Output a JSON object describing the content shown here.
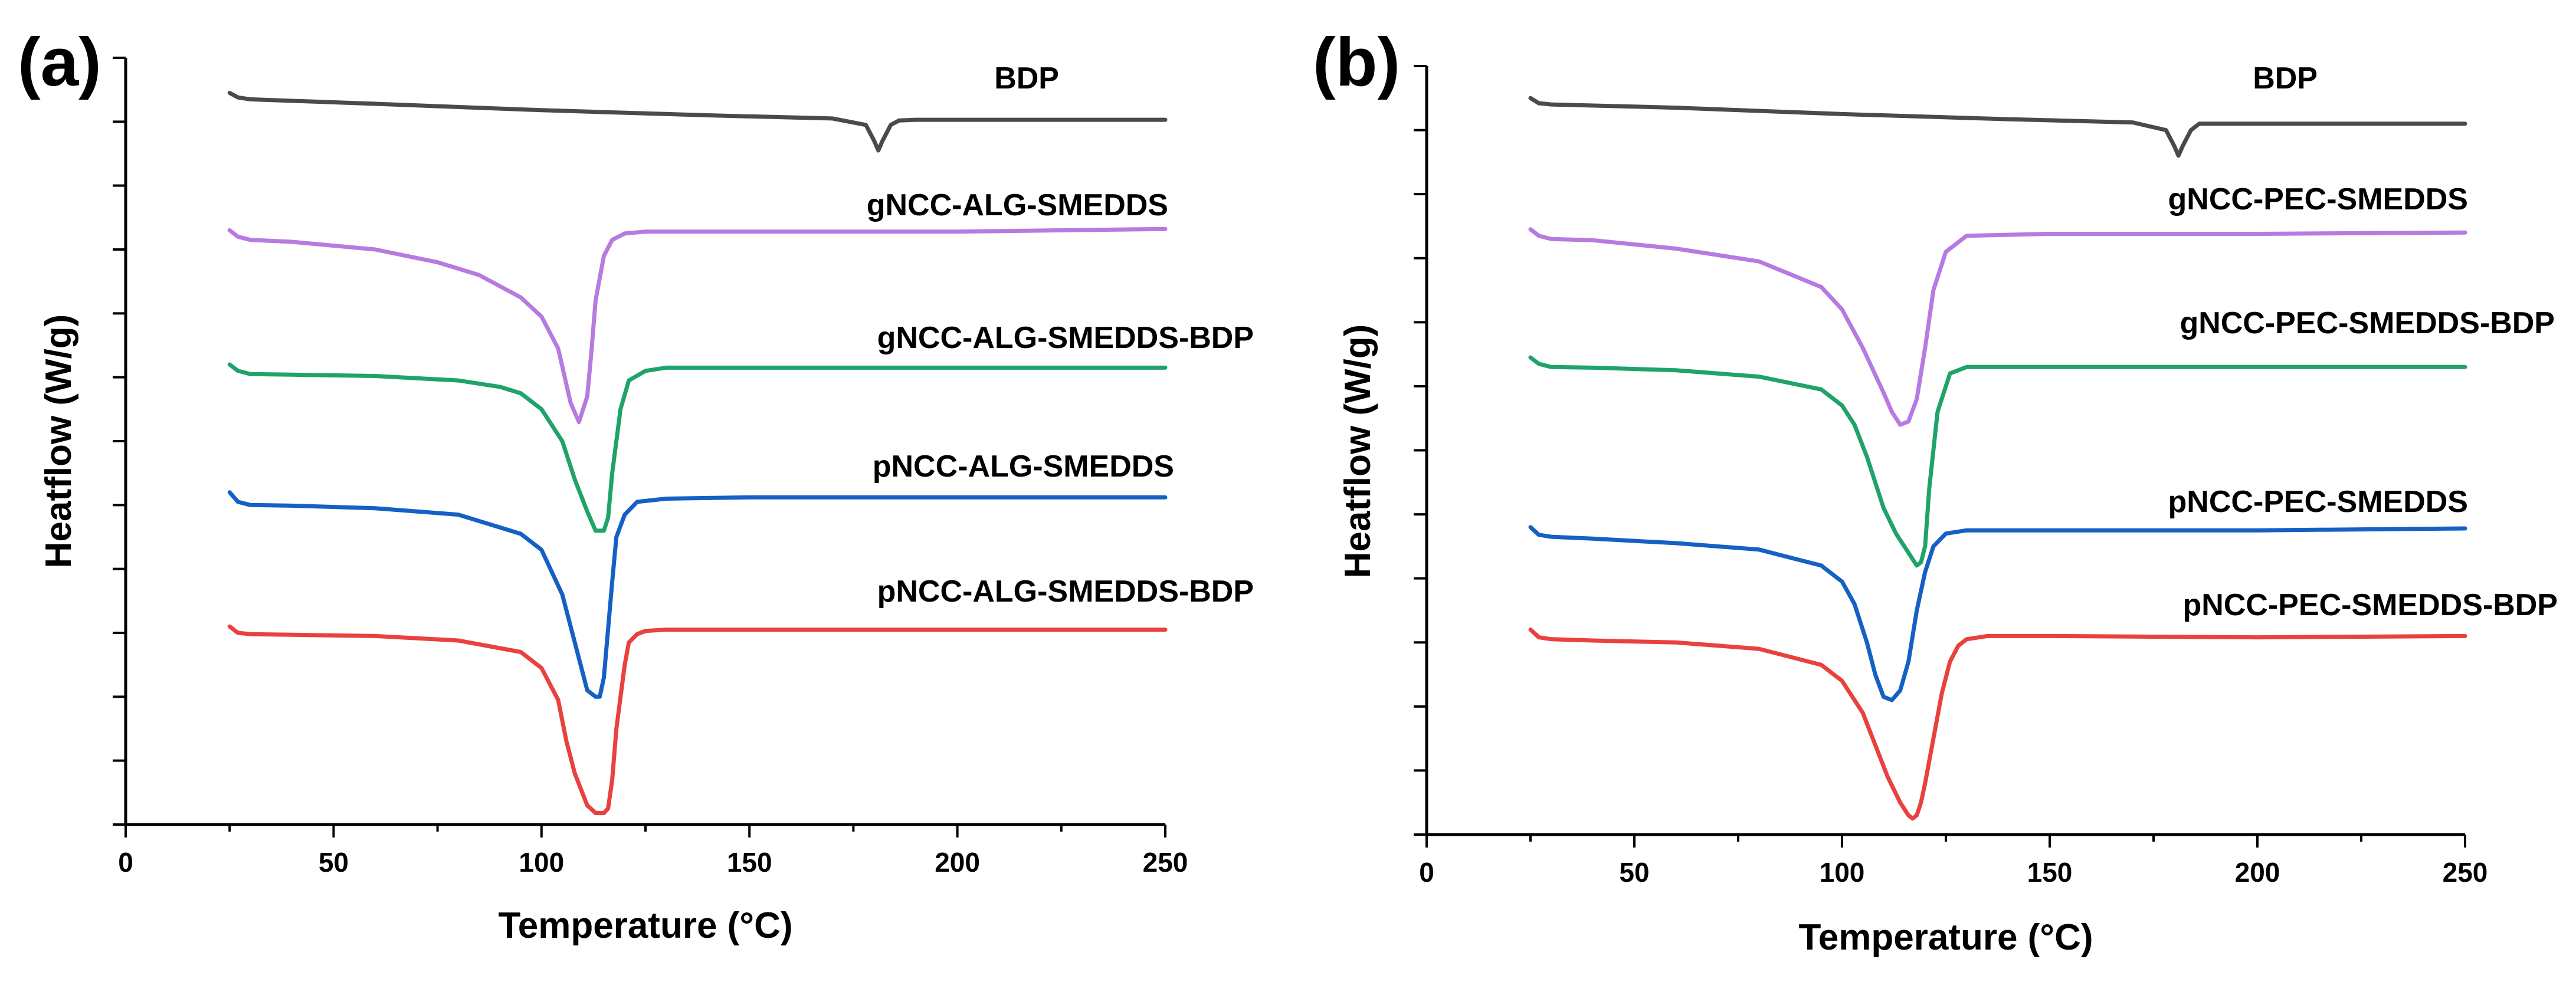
{
  "chart_data": [
    {
      "panel": "(a)",
      "type": "line",
      "xlabel": "Temperature (°C)",
      "ylabel": "Heatflow (W/g)",
      "xlim": [
        0,
        250
      ],
      "ylim": [
        0,
        12
      ],
      "xticks": [
        0,
        50,
        100,
        150,
        200,
        250
      ],
      "y_major_ticks": 12,
      "y_tick_labels": false,
      "series": [
        {
          "name": "BDP",
          "color": "#4a4a4a",
          "x": [
            25,
            27,
            30,
            60,
            100,
            140,
            170,
            178,
            180,
            181,
            182,
            184,
            186,
            190,
            220,
            250
          ],
          "y": [
            11.45,
            11.38,
            11.35,
            11.28,
            11.18,
            11.1,
            11.05,
            10.95,
            10.7,
            10.55,
            10.7,
            10.95,
            11.02,
            11.03,
            11.03,
            11.03
          ]
        },
        {
          "name": "gNCC-ALG-SMEDDS",
          "color": "#b77ae0",
          "x": [
            25,
            27,
            30,
            40,
            60,
            75,
            85,
            95,
            100,
            104,
            107,
            109,
            111,
            112,
            113,
            115,
            117,
            120,
            125,
            150,
            200,
            250
          ],
          "y": [
            9.3,
            9.2,
            9.15,
            9.12,
            9.0,
            8.8,
            8.6,
            8.25,
            7.95,
            7.45,
            6.6,
            6.3,
            6.7,
            7.4,
            8.2,
            8.9,
            9.15,
            9.25,
            9.28,
            9.28,
            9.28,
            9.32
          ]
        },
        {
          "name": "gNCC-ALG-SMEDDS-BDP",
          "color": "#1fa36a",
          "x": [
            25,
            27,
            30,
            40,
            60,
            80,
            90,
            95,
            100,
            105,
            108,
            111,
            113,
            115,
            116,
            117,
            119,
            121,
            125,
            130,
            150,
            200,
            250
          ],
          "y": [
            7.2,
            7.1,
            7.05,
            7.04,
            7.02,
            6.95,
            6.85,
            6.75,
            6.5,
            6.0,
            5.4,
            4.9,
            4.6,
            4.6,
            4.8,
            5.5,
            6.5,
            6.95,
            7.1,
            7.15,
            7.15,
            7.15,
            7.15
          ]
        },
        {
          "name": "pNCC-ALG-SMEDDS",
          "color": "#1560c4",
          "x": [
            25,
            27,
            30,
            40,
            60,
            80,
            95,
            100,
            105,
            108,
            111,
            113,
            114,
            115,
            117,
            118,
            120,
            123,
            130,
            150,
            200,
            250
          ],
          "y": [
            5.2,
            5.05,
            5.0,
            4.99,
            4.95,
            4.85,
            4.55,
            4.3,
            3.6,
            2.85,
            2.1,
            2.0,
            2.0,
            2.3,
            3.8,
            4.5,
            4.85,
            5.05,
            5.1,
            5.12,
            5.12,
            5.12
          ]
        },
        {
          "name": "pNCC-ALG-SMEDDS-BDP",
          "color": "#e8413e",
          "x": [
            25,
            27,
            30,
            40,
            60,
            80,
            95,
            100,
            104,
            106,
            108,
            111,
            113,
            115,
            116,
            117,
            118,
            120,
            121,
            123,
            125,
            130,
            150,
            200,
            250
          ],
          "y": [
            3.1,
            3.0,
            2.98,
            2.97,
            2.95,
            2.88,
            2.7,
            2.45,
            1.95,
            1.3,
            0.8,
            0.3,
            0.18,
            0.18,
            0.25,
            0.7,
            1.5,
            2.5,
            2.85,
            2.98,
            3.03,
            3.05,
            3.05,
            3.05,
            3.05
          ]
        }
      ]
    },
    {
      "panel": "(b)",
      "type": "line",
      "xlabel": "Temperature (°C)",
      "ylabel": "Heatflow (W/g)",
      "xlim": [
        0,
        250
      ],
      "ylim": [
        0,
        12
      ],
      "xticks": [
        0,
        50,
        100,
        150,
        200,
        250
      ],
      "y_major_ticks": 12,
      "y_tick_labels": false,
      "series": [
        {
          "name": "BDP",
          "color": "#4a4a4a",
          "x": [
            25,
            27,
            30,
            60,
            100,
            140,
            170,
            178,
            180,
            181,
            182,
            184,
            186,
            190,
            220,
            250
          ],
          "y": [
            11.5,
            11.42,
            11.4,
            11.35,
            11.25,
            11.17,
            11.12,
            11.0,
            10.75,
            10.6,
            10.75,
            11.0,
            11.1,
            11.1,
            11.1,
            11.1
          ]
        },
        {
          "name": "gNCC-PEC-SMEDDS",
          "color": "#b77ae0",
          "x": [
            25,
            27,
            30,
            40,
            60,
            80,
            95,
            100,
            105,
            110,
            112,
            114,
            116,
            118,
            120,
            122,
            125,
            130,
            150,
            200,
            250
          ],
          "y": [
            9.45,
            9.35,
            9.3,
            9.28,
            9.15,
            8.95,
            8.55,
            8.2,
            7.6,
            6.9,
            6.6,
            6.4,
            6.45,
            6.8,
            7.6,
            8.5,
            9.1,
            9.35,
            9.38,
            9.38,
            9.4
          ]
        },
        {
          "name": "gNCC-PEC-SMEDDS-BDP",
          "color": "#1fa36a",
          "x": [
            25,
            27,
            30,
            40,
            60,
            80,
            95,
            100,
            103,
            106,
            110,
            113,
            116,
            118,
            119,
            120,
            121,
            123,
            126,
            130,
            150,
            200,
            250
          ],
          "y": [
            7.45,
            7.35,
            7.3,
            7.29,
            7.25,
            7.15,
            6.95,
            6.7,
            6.4,
            5.9,
            5.1,
            4.7,
            4.4,
            4.2,
            4.25,
            4.5,
            5.4,
            6.6,
            7.2,
            7.3,
            7.3,
            7.3,
            7.3
          ]
        },
        {
          "name": "pNCC-PEC-SMEDDS",
          "color": "#1560c4",
          "x": [
            25,
            27,
            30,
            40,
            60,
            80,
            95,
            100,
            103,
            106,
            108,
            110,
            112,
            114,
            116,
            118,
            120,
            122,
            125,
            130,
            150,
            200,
            250
          ],
          "y": [
            4.8,
            4.68,
            4.65,
            4.62,
            4.55,
            4.45,
            4.2,
            3.95,
            3.6,
            3.0,
            2.5,
            2.15,
            2.1,
            2.25,
            2.7,
            3.5,
            4.1,
            4.5,
            4.7,
            4.75,
            4.75,
            4.75,
            4.78
          ]
        },
        {
          "name": "pNCC-PEC-SMEDDS-BDP",
          "color": "#e8413e",
          "x": [
            25,
            27,
            30,
            40,
            60,
            80,
            95,
            100,
            105,
            108,
            111,
            114,
            116,
            117,
            118,
            119,
            120,
            122,
            124,
            126,
            128,
            130,
            135,
            150,
            200,
            250
          ],
          "y": [
            3.2,
            3.08,
            3.05,
            3.03,
            3.0,
            2.9,
            2.65,
            2.4,
            1.9,
            1.4,
            0.9,
            0.5,
            0.3,
            0.25,
            0.3,
            0.5,
            0.8,
            1.5,
            2.2,
            2.7,
            2.95,
            3.05,
            3.1,
            3.1,
            3.08,
            3.1
          ]
        }
      ]
    }
  ]
}
